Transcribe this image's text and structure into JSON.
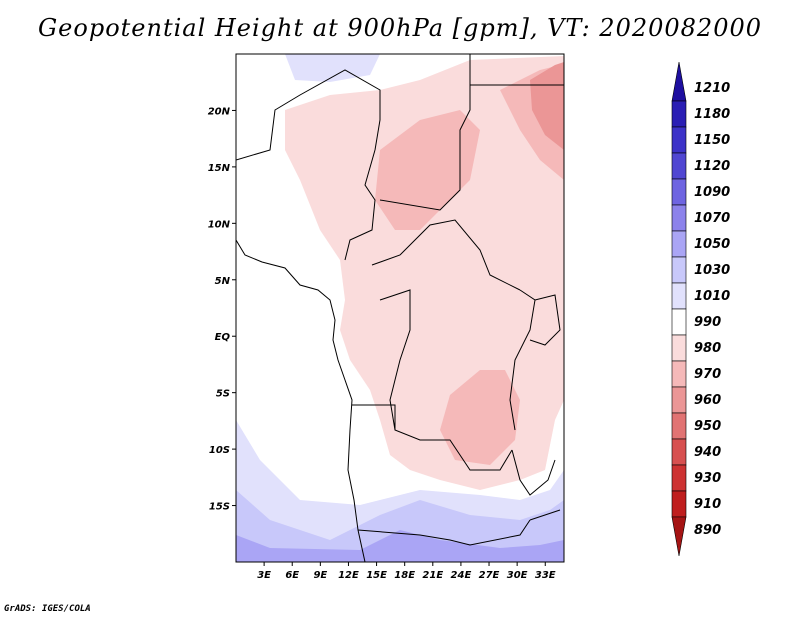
{
  "title": "Geopotential Height at 900hPa [gpm], VT: 2020082000",
  "credit": "GrADS: IGES/COLA",
  "map": {
    "lon_range": [
      0,
      35
    ],
    "lat_range": [
      -20,
      25
    ],
    "lat_ticks": [
      "20N",
      "15N",
      "10N",
      "5N",
      "EQ",
      "5S",
      "10S",
      "15S"
    ],
    "lat_tick_values": [
      20,
      15,
      10,
      5,
      0,
      -5,
      -10,
      -15
    ],
    "lon_ticks": [
      "3E",
      "6E",
      "9E",
      "12E",
      "15E",
      "18E",
      "21E",
      "24E",
      "27E",
      "30E",
      "33E"
    ],
    "lon_tick_values": [
      3,
      6,
      9,
      12,
      15,
      18,
      21,
      24,
      27,
      30,
      33
    ]
  },
  "colorbar": {
    "labels": [
      "1210",
      "1180",
      "1150",
      "1120",
      "1090",
      "1070",
      "1050",
      "1030",
      "1010",
      "990",
      "980",
      "970",
      "960",
      "950",
      "940",
      "930",
      "910",
      "890"
    ],
    "colors_top_to_bottom": [
      "#1e0fa0",
      "#2a1eb4",
      "#3c32c8",
      "#5046d2",
      "#6e64e1",
      "#8c82eb",
      "#aaa5f5",
      "#c8c8fa",
      "#e1e1fc",
      "#ffffff",
      "#fadcdc",
      "#f5b9b9",
      "#eb9696",
      "#e17373",
      "#d75050",
      "#cd3232",
      "#bf1e1e",
      "#a51414"
    ]
  }
}
